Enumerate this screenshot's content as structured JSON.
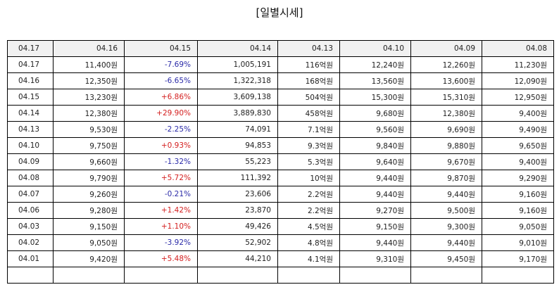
{
  "title": "[일별시세]",
  "header": [
    "04.17",
    "04.16",
    "04.15",
    "04.14",
    "04.13",
    "04.10",
    "04.09",
    "04.08"
  ],
  "rows": [
    {
      "date": "04.17",
      "close": "11,400원",
      "change": "-7.69%",
      "dir": "down",
      "volume": "1,005,191",
      "amount": "116억원",
      "open": "12,240원",
      "high": "12,260원",
      "low": "11,230원"
    },
    {
      "date": "04.16",
      "close": "12,350원",
      "change": "-6.65%",
      "dir": "down",
      "volume": "1,322,318",
      "amount": "168억원",
      "open": "13,560원",
      "high": "13,600원",
      "low": "12,090원"
    },
    {
      "date": "04.15",
      "close": "13,230원",
      "change": "+6.86%",
      "dir": "up",
      "volume": "3,609,138",
      "amount": "504억원",
      "open": "15,300원",
      "high": "15,310원",
      "low": "12,950원"
    },
    {
      "date": "04.14",
      "close": "12,380원",
      "change": "+29.90%",
      "dir": "up",
      "volume": "3,889,830",
      "amount": "458억원",
      "open": "9,680원",
      "high": "12,380원",
      "low": "9,400원"
    },
    {
      "date": "04.13",
      "close": "9,530원",
      "change": "-2.25%",
      "dir": "down",
      "volume": "74,091",
      "amount": "7.1억원",
      "open": "9,560원",
      "high": "9,690원",
      "low": "9,490원"
    },
    {
      "date": "04.10",
      "close": "9,750원",
      "change": "+0.93%",
      "dir": "up",
      "volume": "94,853",
      "amount": "9.3억원",
      "open": "9,840원",
      "high": "9,880원",
      "low": "9,650원"
    },
    {
      "date": "04.09",
      "close": "9,660원",
      "change": "-1.32%",
      "dir": "down",
      "volume": "55,223",
      "amount": "5.3억원",
      "open": "9,640원",
      "high": "9,670원",
      "low": "9,400원"
    },
    {
      "date": "04.08",
      "close": "9,790원",
      "change": "+5.72%",
      "dir": "up",
      "volume": "111,392",
      "amount": "10억원",
      "open": "9,440원",
      "high": "9,870원",
      "low": "9,290원"
    },
    {
      "date": "04.07",
      "close": "9,260원",
      "change": "-0.21%",
      "dir": "down",
      "volume": "23,606",
      "amount": "2.2억원",
      "open": "9,440원",
      "high": "9,440원",
      "low": "9,160원"
    },
    {
      "date": "04.06",
      "close": "9,280원",
      "change": "+1.42%",
      "dir": "up",
      "volume": "23,870",
      "amount": "2.2억원",
      "open": "9,270원",
      "high": "9,500원",
      "low": "9,160원"
    },
    {
      "date": "04.03",
      "close": "9,150원",
      "change": "+1.10%",
      "dir": "up",
      "volume": "49,426",
      "amount": "4.5억원",
      "open": "9,150원",
      "high": "9,300원",
      "low": "9,050원"
    },
    {
      "date": "04.02",
      "close": "9,050원",
      "change": "-3.92%",
      "dir": "down",
      "volume": "52,902",
      "amount": "4.8억원",
      "open": "9,440원",
      "high": "9,440원",
      "low": "9,010원"
    },
    {
      "date": "04.01",
      "close": "9,420원",
      "change": "+5.48%",
      "dir": "up",
      "volume": "44,210",
      "amount": "4.1억원",
      "open": "9,310원",
      "high": "9,450원",
      "low": "9,170원"
    }
  ],
  "colors": {
    "down": "#2a2aa8",
    "up": "#d42020"
  }
}
